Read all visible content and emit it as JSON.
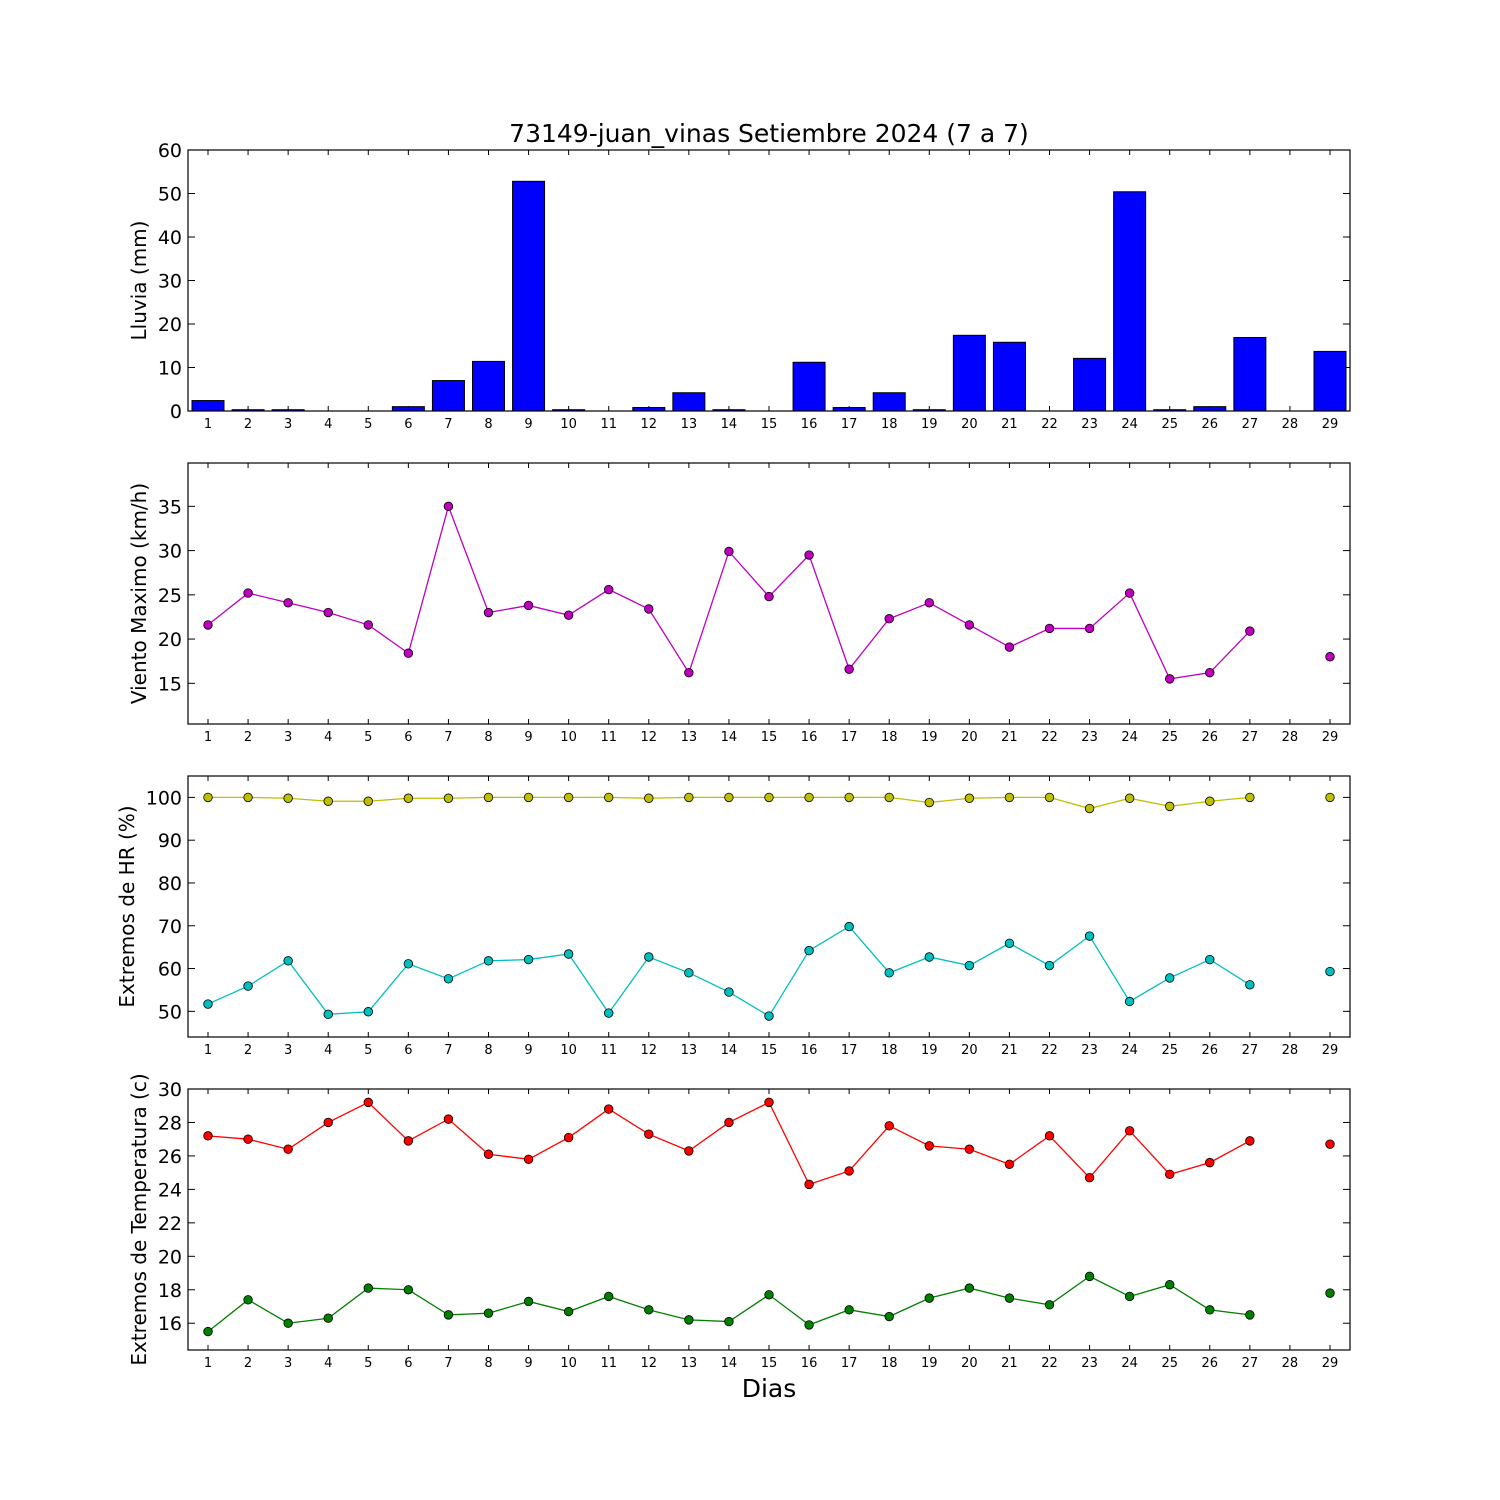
{
  "title": "73149-juan_vinas Setiembre 2024  (7 a 7)",
  "xlabel": "Dias",
  "colors": {
    "rain": "#0000ff",
    "wind": "#bf00bf",
    "hr_max": "#bfbf00",
    "hr_min": "#00bfbf",
    "temp_max": "#ff0000",
    "temp_min": "#008000"
  },
  "chart_data": [
    {
      "type": "bar",
      "id": "rain",
      "ylabel": "Lluvia (mm)",
      "ylim": [
        0,
        60
      ],
      "yticks": [
        0,
        10,
        20,
        30,
        40,
        50,
        60
      ],
      "categories": [
        1,
        2,
        3,
        4,
        5,
        6,
        7,
        8,
        9,
        10,
        11,
        12,
        13,
        14,
        15,
        16,
        17,
        18,
        19,
        20,
        21,
        22,
        23,
        24,
        25,
        26,
        27,
        28,
        29
      ],
      "series": [
        {
          "color": "#0000ff",
          "values": [
            2.4,
            0.3,
            0.3,
            0,
            0,
            1.0,
            7.0,
            11.4,
            52.8,
            0.3,
            0,
            0.8,
            4.2,
            0.3,
            0,
            11.2,
            0.8,
            4.2,
            0.3,
            17.4,
            15.8,
            0,
            12.1,
            50.4,
            0.3,
            1.0,
            16.9,
            0,
            13.7
          ]
        }
      ]
    },
    {
      "type": "line",
      "id": "wind",
      "ylabel": "Viento Maximo (km/h)",
      "ylim": [
        10.4,
        39.9
      ],
      "yticks": [
        15,
        20,
        25,
        30,
        35
      ],
      "x": [
        1,
        2,
        3,
        4,
        5,
        6,
        7,
        8,
        9,
        10,
        11,
        12,
        13,
        14,
        15,
        16,
        17,
        18,
        19,
        20,
        21,
        22,
        23,
        24,
        25,
        26,
        27,
        28,
        29
      ],
      "series": [
        {
          "color": "#bf00bf",
          "values": [
            21.6,
            25.2,
            24.1,
            23.0,
            21.6,
            18.4,
            35.0,
            23.0,
            23.8,
            22.7,
            25.6,
            23.4,
            16.2,
            29.9,
            24.8,
            29.5,
            16.6,
            22.3,
            24.1,
            21.6,
            19.1,
            21.2,
            21.2,
            25.2,
            15.5,
            16.2,
            20.9,
            null,
            18.0
          ]
        }
      ]
    },
    {
      "type": "line",
      "id": "hr",
      "ylabel": "Extremos de HR (%)",
      "ylim": [
        44,
        105
      ],
      "yticks": [
        50,
        60,
        70,
        80,
        90,
        100
      ],
      "x": [
        1,
        2,
        3,
        4,
        5,
        6,
        7,
        8,
        9,
        10,
        11,
        12,
        13,
        14,
        15,
        16,
        17,
        18,
        19,
        20,
        21,
        22,
        23,
        24,
        25,
        26,
        27,
        28,
        29
      ],
      "series": [
        {
          "color": "#bfbf00",
          "values": [
            100,
            100,
            99.8,
            99.1,
            99.1,
            99.8,
            99.8,
            100,
            100,
            100,
            100,
            99.8,
            100,
            100,
            100,
            100,
            100,
            100,
            98.8,
            99.8,
            100,
            100,
            97.4,
            99.8,
            97.9,
            99.1,
            100,
            null,
            100
          ]
        },
        {
          "color": "#00bfbf",
          "values": [
            51.7,
            55.9,
            61.8,
            49.3,
            49.9,
            61.1,
            57.6,
            61.8,
            62.1,
            63.4,
            49.6,
            62.7,
            59.0,
            54.5,
            48.9,
            64.2,
            69.8,
            59.0,
            62.7,
            60.7,
            65.9,
            60.7,
            67.6,
            52.3,
            57.8,
            62.1,
            56.2,
            null,
            59.3
          ]
        }
      ]
    },
    {
      "type": "line",
      "id": "temp",
      "ylabel": "Extremos de Temperatura (c)",
      "ylim": [
        14.4,
        30
      ],
      "yticks": [
        16,
        18,
        20,
        22,
        24,
        26,
        28,
        30
      ],
      "x": [
        1,
        2,
        3,
        4,
        5,
        6,
        7,
        8,
        9,
        10,
        11,
        12,
        13,
        14,
        15,
        16,
        17,
        18,
        19,
        20,
        21,
        22,
        23,
        24,
        25,
        26,
        27,
        28,
        29
      ],
      "series": [
        {
          "color": "#ff0000",
          "values": [
            27.2,
            27.0,
            26.4,
            28.0,
            29.2,
            26.9,
            28.2,
            26.1,
            25.8,
            27.1,
            28.8,
            27.3,
            26.3,
            28.0,
            29.2,
            24.3,
            25.1,
            27.8,
            26.6,
            26.4,
            25.5,
            27.2,
            24.7,
            27.5,
            24.9,
            25.6,
            26.9,
            null,
            26.7
          ]
        },
        {
          "color": "#008000",
          "values": [
            15.5,
            17.4,
            16.0,
            16.3,
            18.1,
            18.0,
            16.5,
            16.6,
            17.3,
            16.7,
            17.6,
            16.8,
            16.2,
            16.1,
            17.7,
            15.9,
            16.8,
            16.4,
            17.5,
            18.1,
            17.5,
            17.1,
            18.8,
            17.6,
            18.3,
            16.8,
            16.5,
            null,
            17.8
          ]
        }
      ]
    }
  ]
}
